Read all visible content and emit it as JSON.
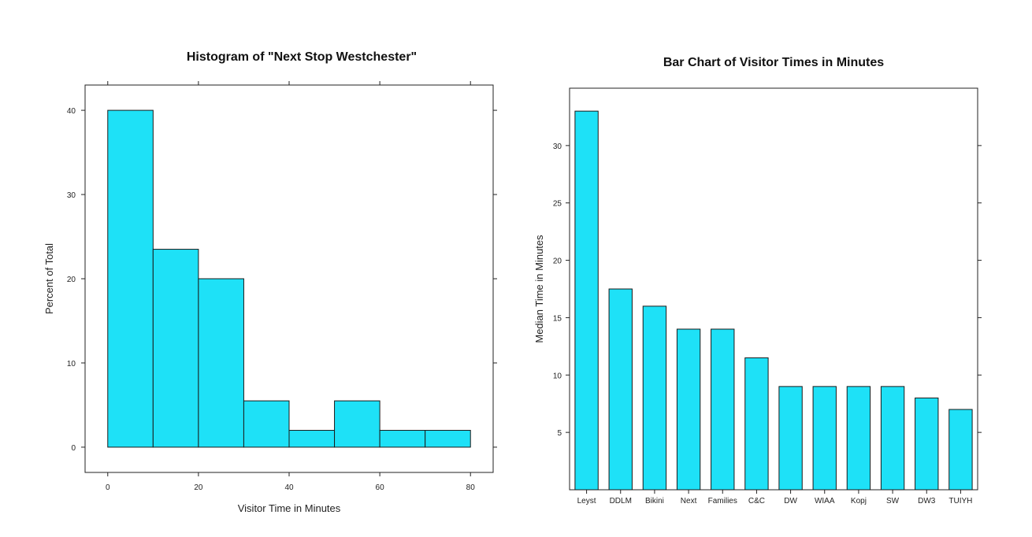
{
  "chart_data": [
    {
      "type": "bar",
      "title": "Histogram of  \"Next Stop Westchester\"",
      "xlabel": "Visitor Time in Minutes",
      "ylabel": "Percent of Total",
      "bins": [
        {
          "start": 0,
          "end": 10,
          "value": 40
        },
        {
          "start": 10,
          "end": 20,
          "value": 23.5
        },
        {
          "start": 20,
          "end": 30,
          "value": 20
        },
        {
          "start": 30,
          "end": 40,
          "value": 5.5
        },
        {
          "start": 40,
          "end": 50,
          "value": 2
        },
        {
          "start": 50,
          "end": 60,
          "value": 5.5
        },
        {
          "start": 60,
          "end": 70,
          "value": 2
        },
        {
          "start": 70,
          "end": 80,
          "value": 2
        }
      ],
      "xticks": [
        0,
        20,
        40,
        60,
        80
      ],
      "xtick_labels": [
        "0",
        "20",
        "40",
        "60",
        "80"
      ],
      "yticks": [
        0,
        10,
        20,
        30,
        40
      ],
      "xlim": [
        -5,
        85
      ],
      "ylim": [
        -3,
        43
      ],
      "grid": false
    },
    {
      "type": "bar",
      "title": "Bar Chart of Visitor Times in Minutes",
      "xlabel": "",
      "ylabel": "Median Time in Minutes",
      "categories": [
        "Leyst",
        "DDLM",
        "Bikini",
        "Next",
        "Families",
        "C&C",
        "DW",
        "WIAA",
        "Kopj",
        "SW",
        "DW3",
        "TUIYH"
      ],
      "values": [
        33,
        17.5,
        16,
        14,
        14,
        11.5,
        9,
        9,
        9,
        9,
        8,
        7
      ],
      "yticks": [
        5,
        10,
        15,
        20,
        25,
        30
      ],
      "ylim": [
        0,
        35
      ],
      "grid": false
    }
  ]
}
